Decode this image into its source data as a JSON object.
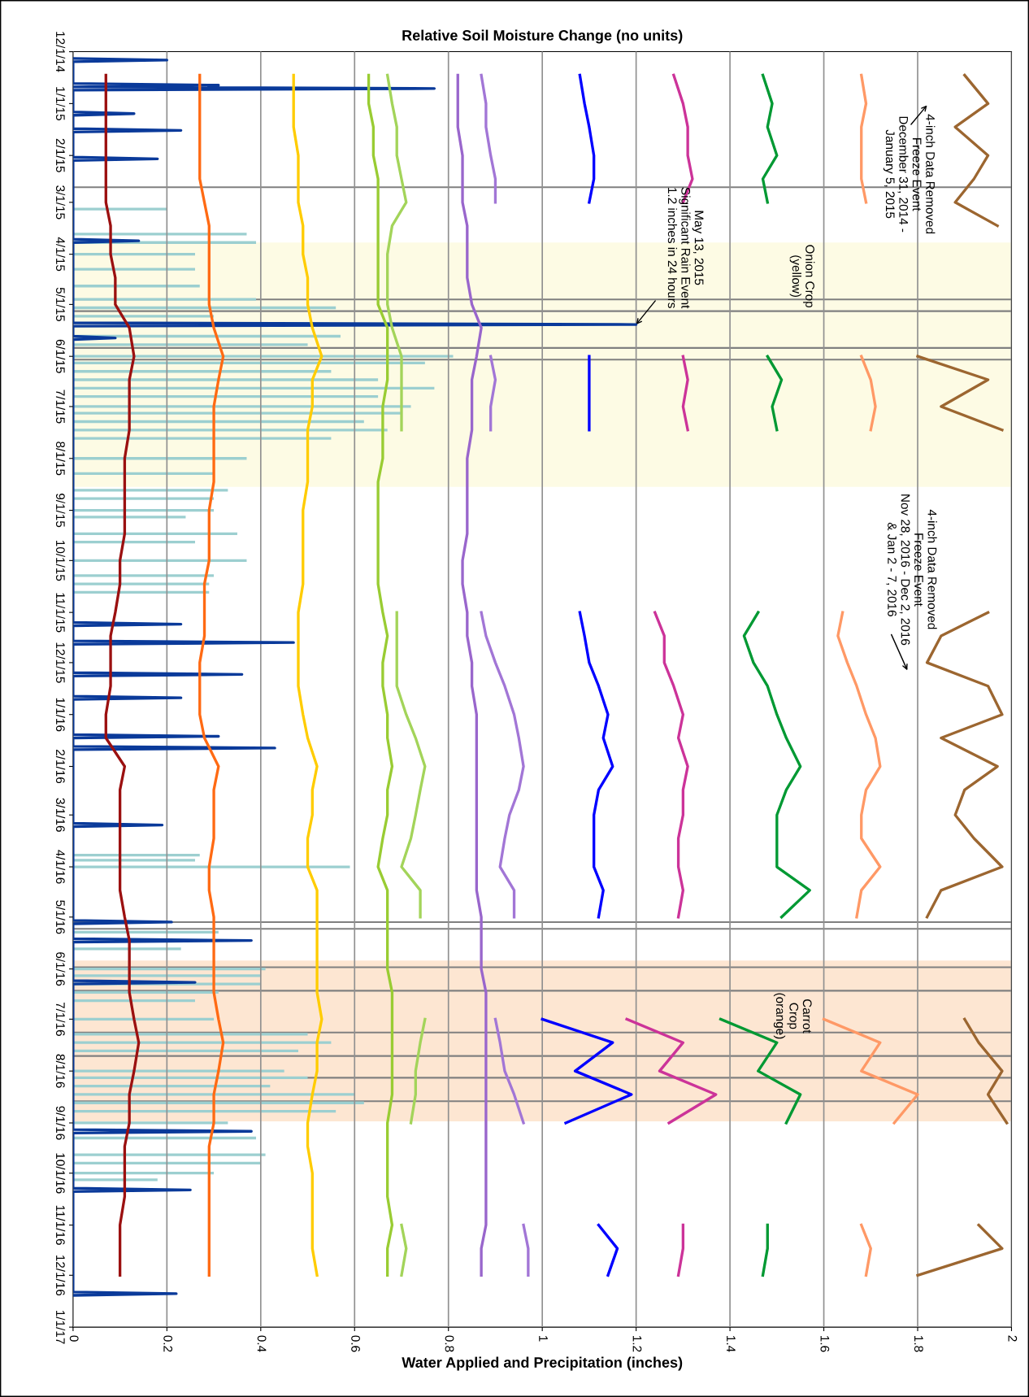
{
  "chart_data": {
    "type": "line",
    "orientation": "horizontal",
    "title": "Relative Soil Moisture Change (no units)",
    "xlabel": "Water Applied and Precipitation (inches)",
    "xlim": [
      0,
      2
    ],
    "xticks": [
      0,
      0.2,
      0.4,
      0.6,
      0.8,
      1,
      1.2,
      1.4,
      1.6,
      1.8,
      2
    ],
    "ylim": [
      "2017-01-01",
      "2014-12-01"
    ],
    "yticks": [
      {
        "value": "2014-12-01",
        "label": "12/1/14"
      },
      {
        "value": "2015-01-01",
        "label": "1/1/15"
      },
      {
        "value": "2015-02-01",
        "label": "2/1/15"
      },
      {
        "value": "2015-03-01",
        "label": "3/1/15"
      },
      {
        "value": "2015-04-01",
        "label": "4/1/15"
      },
      {
        "value": "2015-05-01",
        "label": "5/1/15"
      },
      {
        "value": "2015-06-01",
        "label": "6/1/15"
      },
      {
        "value": "2015-07-01",
        "label": "7/1/15"
      },
      {
        "value": "2015-08-01",
        "label": "8/1/15"
      },
      {
        "value": "2015-09-01",
        "label": "9/1/15"
      },
      {
        "value": "2015-10-01",
        "label": "10/1/15"
      },
      {
        "value": "2015-11-01",
        "label": "11/1/15"
      },
      {
        "value": "2015-12-01",
        "label": "12/1/15"
      },
      {
        "value": "2016-01-01",
        "label": "1/1/16"
      },
      {
        "value": "2016-02-01",
        "label": "2/1/16"
      },
      {
        "value": "2016-03-01",
        "label": "3/1/16"
      },
      {
        "value": "2016-04-01",
        "label": "4/1/16"
      },
      {
        "value": "2016-05-01",
        "label": "5/1/16"
      },
      {
        "value": "2016-06-01",
        "label": "6/1/16"
      },
      {
        "value": "2016-07-01",
        "label": "7/1/16"
      },
      {
        "value": "2016-08-01",
        "label": "8/1/16"
      },
      {
        "value": "2016-09-01",
        "label": "9/1/16"
      },
      {
        "value": "2016-10-01",
        "label": "10/1/16"
      },
      {
        "value": "2016-11-01",
        "label": "11/1/16"
      },
      {
        "value": "2016-12-01",
        "label": "12/1/16"
      },
      {
        "value": "2017-01-01",
        "label": "1/1/17"
      }
    ],
    "grid": "x",
    "x": [
      "2014-12-15",
      "2015-01-01",
      "2015-01-15",
      "2015-02-01",
      "2015-02-15",
      "2015-03-01",
      "2015-03-15",
      "2015-04-01",
      "2015-04-15",
      "2015-05-01",
      "2015-05-15",
      "2015-06-01",
      "2015-06-15",
      "2015-07-01",
      "2015-07-15",
      "2015-08-01",
      "2015-08-15",
      "2015-09-01",
      "2015-09-15",
      "2015-10-01",
      "2015-10-15",
      "2015-11-01",
      "2015-11-15",
      "2015-12-01",
      "2015-12-15",
      "2016-01-01",
      "2016-01-15",
      "2016-02-01",
      "2016-02-15",
      "2016-03-01",
      "2016-03-15",
      "2016-04-01",
      "2016-04-15",
      "2016-05-01",
      "2016-05-15",
      "2016-06-01",
      "2016-06-15",
      "2016-07-01",
      "2016-07-15",
      "2016-08-01",
      "2016-08-15",
      "2016-09-01",
      "2016-09-15",
      "2016-10-01",
      "2016-10-15",
      "2016-11-01",
      "2016-11-15",
      "2016-12-01"
    ],
    "bands": [
      {
        "axis": "y",
        "from": "2015-03-25",
        "to": "2015-08-18",
        "color": "#fdfbe4"
      },
      {
        "axis": "y",
        "from": "2016-05-27",
        "to": "2016-08-31",
        "color": "#fde6d2"
      }
    ],
    "ref_lines": [
      {
        "axis": "y",
        "value": "2015-02-20",
        "color": "#808080"
      },
      {
        "axis": "y",
        "value": "2015-04-28",
        "color": "#808080"
      },
      {
        "axis": "y",
        "value": "2015-05-05",
        "color": "#808080"
      },
      {
        "axis": "y",
        "value": "2015-05-27",
        "color": "#808080"
      },
      {
        "axis": "y",
        "value": "2015-06-03",
        "color": "#808080"
      },
      {
        "axis": "y",
        "value": "2016-05-04",
        "color": "#808080"
      },
      {
        "axis": "y",
        "value": "2016-05-08",
        "color": "#808080"
      },
      {
        "axis": "y",
        "value": "2016-05-31",
        "color": "#808080"
      },
      {
        "axis": "y",
        "value": "2016-06-14",
        "color": "#808080"
      },
      {
        "axis": "y",
        "value": "2016-07-09",
        "color": "#808080"
      },
      {
        "axis": "y",
        "value": "2016-07-23",
        "color": "#808080"
      },
      {
        "axis": "y",
        "value": "2016-08-05",
        "color": "#808080"
      },
      {
        "axis": "y",
        "value": "2016-08-19",
        "color": "#808080"
      }
    ],
    "annotations": [
      "4-inch Data Removed\nFreeze Event\nDecember 31, 2014 -\nJanuary 5, 2015",
      {
        "text": "May 13, 2015\nSignificant Rain Event\n1.2 inches in 24 hours",
        "x": 1.2,
        "y": "2015-05-13"
      },
      "Onion Crop\n(yellow)",
      "4-inch Data Removed\nFreeze Event\nNov 28, 2016 - Dec 2, 2016\n& Jan 2 - 7, 2016",
      "Carrot\nCrop\n(orange)"
    ],
    "series": [
      {
        "type": "bar",
        "color": "#9ccfd0",
        "x": [
          "2015-03-05",
          "2015-03-20",
          "2015-03-25",
          "2015-04-01",
          "2015-04-10",
          "2015-04-20",
          "2015-04-28",
          "2015-05-03",
          "2015-05-08",
          "2015-05-20",
          "2015-05-25",
          "2015-06-01",
          "2015-06-05",
          "2015-06-10",
          "2015-06-15",
          "2015-06-20",
          "2015-06-25",
          "2015-07-01",
          "2015-07-05",
          "2015-07-10",
          "2015-07-15",
          "2015-07-20",
          "2015-08-01",
          "2015-08-10",
          "2015-08-20",
          "2015-08-25",
          "2015-09-01",
          "2015-09-05",
          "2015-09-15",
          "2015-09-20",
          "2015-10-01",
          "2015-10-10",
          "2015-10-15",
          "2015-10-20",
          "2016-03-25",
          "2016-03-28",
          "2016-04-01",
          "2016-05-10",
          "2016-05-20",
          "2016-06-01",
          "2016-06-05",
          "2016-06-10",
          "2016-06-15",
          "2016-06-20",
          "2016-07-01",
          "2016-07-10",
          "2016-07-15",
          "2016-07-20",
          "2016-08-01",
          "2016-08-05",
          "2016-08-10",
          "2016-08-15",
          "2016-08-20",
          "2016-08-25",
          "2016-09-01",
          "2016-09-10",
          "2016-09-20",
          "2016-09-25",
          "2016-10-01",
          "2016-10-05"
        ],
        "values": [
          0.2,
          0.37,
          0.39,
          0.26,
          0.26,
          0.27,
          0.39,
          0.56,
          0.3,
          0.57,
          0.5,
          0.81,
          0.75,
          0.55,
          0.65,
          0.77,
          0.65,
          0.72,
          0.7,
          0.62,
          0.67,
          0.55,
          0.37,
          0.3,
          0.33,
          0.3,
          0.3,
          0.24,
          0.35,
          0.26,
          0.37,
          0.3,
          0.29,
          0.29,
          0.27,
          0.26,
          0.59,
          0.31,
          0.23,
          0.41,
          0.4,
          0.4,
          0.31,
          0.26,
          0.3,
          0.5,
          0.55,
          0.48,
          0.45,
          0.5,
          0.42,
          0.6,
          0.62,
          0.56,
          0.33,
          0.39,
          0.41,
          0.4,
          0.3,
          0.18
        ]
      },
      {
        "type": "line",
        "color": "#0a3a9a",
        "x": [
          "2014-12-05",
          "2014-12-06",
          "2014-12-07",
          "2014-12-20",
          "2014-12-21",
          "2014-12-22",
          "2014-12-23",
          "2014-12-24",
          "2015-01-06",
          "2015-01-07",
          "2015-01-08",
          "2015-01-16",
          "2015-01-17",
          "2015-01-18",
          "2015-02-02",
          "2015-02-03",
          "2015-02-04",
          "2015-03-23",
          "2015-03-24",
          "2015-03-25",
          "2015-05-12",
          "2015-05-13",
          "2015-05-14",
          "2015-05-20",
          "2015-05-21",
          "2015-05-22",
          "2015-11-07",
          "2015-11-08",
          "2015-11-09",
          "2015-11-18",
          "2015-11-19",
          "2015-11-20",
          "2015-12-07",
          "2015-12-08",
          "2015-12-09",
          "2015-12-21",
          "2015-12-22",
          "2015-12-23",
          "2016-01-13",
          "2016-01-14",
          "2016-01-15",
          "2016-01-20",
          "2016-01-21",
          "2016-01-22",
          "2016-03-06",
          "2016-03-07",
          "2016-03-08",
          "2016-05-03",
          "2016-05-04",
          "2016-05-05",
          "2016-05-14",
          "2016-05-15",
          "2016-05-16",
          "2016-06-08",
          "2016-06-09",
          "2016-06-10",
          "2016-09-05",
          "2016-09-06",
          "2016-09-07",
          "2016-10-10",
          "2016-10-11",
          "2016-10-12",
          "2016-12-11",
          "2016-12-12",
          "2016-12-13"
        ],
        "values": [
          0,
          0.2,
          0,
          0,
          0.31,
          0,
          0.77,
          0,
          0,
          0.13,
          0,
          0,
          0.23,
          0,
          0,
          0.18,
          0,
          0,
          0.14,
          0,
          0,
          1.2,
          0,
          0,
          0.09,
          0,
          0,
          0.23,
          0,
          0,
          0.47,
          0,
          0,
          0.36,
          0,
          0,
          0.23,
          0,
          0,
          0.31,
          0,
          0,
          0.43,
          0,
          0,
          0.19,
          0,
          0,
          0.21,
          0,
          0,
          0.38,
          0,
          0,
          0.26,
          0,
          0,
          0.38,
          0,
          0,
          0.25,
          0,
          0,
          0.22,
          0
        ]
      },
      {
        "color": "#9b1010",
        "values": [
          0.07,
          0.07,
          0.07,
          0.07,
          0.07,
          0.07,
          0.08,
          0.08,
          0.09,
          0.09,
          0.12,
          0.13,
          0.12,
          0.12,
          0.12,
          0.11,
          0.11,
          0.11,
          0.11,
          0.1,
          0.1,
          0.09,
          0.08,
          0.08,
          0.08,
          0.07,
          0.07,
          0.11,
          0.1,
          0.1,
          0.1,
          0.1,
          0.1,
          0.11,
          0.12,
          0.12,
          0.12,
          0.13,
          0.14,
          0.13,
          0.12,
          0.12,
          0.11,
          0.11,
          0.11,
          0.1,
          0.1,
          0.1
        ]
      },
      {
        "color": "#ff6a13",
        "values": [
          0.27,
          0.27,
          0.27,
          0.27,
          0.27,
          0.28,
          0.29,
          0.29,
          0.29,
          0.29,
          0.3,
          0.32,
          0.31,
          0.3,
          0.3,
          0.3,
          0.3,
          0.29,
          0.29,
          0.29,
          0.28,
          0.28,
          0.28,
          0.27,
          0.27,
          0.27,
          0.28,
          0.31,
          0.3,
          0.3,
          0.3,
          0.29,
          0.29,
          0.3,
          0.3,
          0.3,
          0.3,
          0.31,
          0.32,
          0.31,
          0.3,
          0.3,
          0.29,
          0.29,
          0.29,
          0.29,
          0.29,
          0.29
        ]
      },
      {
        "color": "#ffcc00",
        "values": [
          0.47,
          0.47,
          0.47,
          0.48,
          0.48,
          0.48,
          0.49,
          0.49,
          0.5,
          0.5,
          0.51,
          0.53,
          0.51,
          0.51,
          0.5,
          0.5,
          0.5,
          0.49,
          0.49,
          0.49,
          0.49,
          0.48,
          0.48,
          0.48,
          0.48,
          0.49,
          0.5,
          0.52,
          0.51,
          0.51,
          0.5,
          0.5,
          0.52,
          0.52,
          0.52,
          0.52,
          0.52,
          0.53,
          0.52,
          0.52,
          0.51,
          0.5,
          0.5,
          0.51,
          0.51,
          0.51,
          0.51,
          0.52
        ]
      },
      {
        "color": "#99cc33",
        "values": [
          0.63,
          0.63,
          0.64,
          0.64,
          0.65,
          0.65,
          0.65,
          0.65,
          0.65,
          0.65,
          0.67,
          0.67,
          0.67,
          0.66,
          0.66,
          0.66,
          0.65,
          0.65,
          0.65,
          0.65,
          0.65,
          0.66,
          0.67,
          0.66,
          0.66,
          0.67,
          0.67,
          0.68,
          0.67,
          0.67,
          0.66,
          0.65,
          0.67,
          0.67,
          0.67,
          0.67,
          0.68,
          0.68,
          0.68,
          0.68,
          0.68,
          0.67,
          0.67,
          0.67,
          0.67,
          0.68,
          0.67,
          0.67
        ]
      },
      {
        "color": "#a3d45a",
        "values": [
          0.67,
          0.68,
          0.69,
          0.69,
          0.7,
          0.71,
          0.68,
          0.67,
          0.67,
          0.67,
          0.68,
          0.7,
          0.7,
          0.7,
          0.7,
          null,
          null,
          null,
          null,
          null,
          null,
          0.69,
          0.69,
          0.69,
          0.69,
          0.71,
          0.73,
          0.75,
          0.74,
          0.73,
          0.72,
          0.7,
          0.74,
          0.74,
          null,
          null,
          null,
          0.75,
          0.74,
          0.73,
          0.73,
          0.72,
          null,
          null,
          null,
          0.7,
          0.71,
          0.7
        ]
      },
      {
        "color": "#9966cc",
        "values": [
          0.82,
          0.82,
          0.82,
          0.83,
          0.83,
          0.83,
          0.84,
          0.84,
          0.84,
          0.85,
          0.87,
          0.86,
          0.85,
          0.85,
          0.85,
          0.84,
          0.84,
          0.84,
          0.84,
          0.83,
          0.83,
          0.84,
          0.84,
          0.85,
          0.85,
          0.86,
          0.86,
          0.86,
          0.86,
          0.86,
          0.86,
          0.86,
          0.86,
          0.87,
          0.87,
          0.87,
          0.88,
          0.88,
          0.88,
          0.88,
          0.88,
          0.88,
          0.88,
          0.88,
          0.88,
          0.88,
          0.87,
          0.87
        ]
      },
      {
        "color": "#a276d6",
        "values": [
          0.87,
          0.88,
          0.88,
          0.89,
          0.9,
          0.9,
          null,
          null,
          null,
          null,
          null,
          0.89,
          0.9,
          0.89,
          0.89,
          null,
          null,
          null,
          null,
          null,
          null,
          0.87,
          0.88,
          0.9,
          0.92,
          0.94,
          0.95,
          0.96,
          0.95,
          0.93,
          0.92,
          0.91,
          0.94,
          0.94,
          null,
          null,
          null,
          0.9,
          0.91,
          0.92,
          0.94,
          0.96,
          null,
          null,
          null,
          0.96,
          0.97,
          0.97
        ]
      },
      {
        "color": "#0000ff",
        "values": [
          1.08,
          1.09,
          1.1,
          1.11,
          1.11,
          1.1,
          null,
          null,
          null,
          null,
          null,
          1.1,
          1.1,
          1.1,
          1.1,
          null,
          null,
          null,
          null,
          null,
          null,
          1.08,
          1.09,
          1.1,
          1.12,
          1.14,
          1.13,
          1.15,
          1.12,
          1.11,
          1.11,
          1.11,
          1.13,
          1.12,
          null,
          null,
          null,
          1.0,
          1.15,
          1.07,
          1.19,
          1.05,
          null,
          null,
          null,
          1.12,
          1.16,
          1.14
        ]
      },
      {
        "color": "#cc3399",
        "values": [
          1.28,
          1.3,
          1.31,
          1.31,
          1.32,
          1.3,
          null,
          null,
          null,
          null,
          null,
          1.3,
          1.31,
          1.3,
          1.31,
          null,
          null,
          null,
          null,
          null,
          null,
          1.24,
          1.26,
          1.26,
          1.28,
          1.3,
          1.29,
          1.31,
          1.3,
          1.3,
          1.29,
          1.29,
          1.3,
          1.29,
          null,
          null,
          null,
          1.18,
          1.3,
          1.25,
          1.37,
          1.27,
          null,
          null,
          null,
          1.3,
          1.3,
          1.29
        ]
      },
      {
        "color": "#009933",
        "values": [
          1.47,
          1.49,
          1.48,
          1.5,
          1.47,
          1.48,
          null,
          null,
          null,
          null,
          null,
          1.48,
          1.51,
          1.49,
          1.5,
          null,
          null,
          null,
          null,
          null,
          null,
          1.46,
          1.43,
          1.45,
          1.48,
          1.5,
          1.52,
          1.55,
          1.52,
          1.5,
          1.5,
          1.5,
          1.57,
          1.51,
          null,
          null,
          null,
          1.38,
          1.5,
          1.46,
          1.55,
          1.52,
          null,
          null,
          null,
          1.48,
          1.48,
          1.47
        ]
      },
      {
        "color": "#ff9966",
        "values": [
          1.68,
          1.69,
          1.68,
          1.68,
          1.68,
          1.69,
          null,
          null,
          null,
          null,
          null,
          1.68,
          1.7,
          1.71,
          1.7,
          null,
          null,
          null,
          null,
          null,
          null,
          1.64,
          1.63,
          1.65,
          1.67,
          1.69,
          1.71,
          1.72,
          1.69,
          1.68,
          1.68,
          1.72,
          1.68,
          1.67,
          null,
          null,
          null,
          1.6,
          1.72,
          1.68,
          1.8,
          1.75,
          null,
          null,
          null,
          1.68,
          1.7,
          1.69
        ]
      },
      {
        "color": "#9c6630",
        "values": [
          1.9,
          1.95,
          1.88,
          1.95,
          1.92,
          1.88,
          1.97,
          null,
          null,
          null,
          null,
          1.8,
          1.95,
          1.85,
          1.98,
          null,
          null,
          null,
          null,
          null,
          null,
          1.95,
          1.85,
          1.82,
          1.95,
          1.98,
          1.85,
          1.97,
          1.9,
          1.88,
          1.92,
          1.98,
          1.85,
          1.82,
          null,
          null,
          null,
          1.9,
          1.93,
          1.98,
          1.95,
          1.99,
          null,
          null,
          null,
          1.93,
          1.98,
          1.8
        ]
      }
    ]
  }
}
